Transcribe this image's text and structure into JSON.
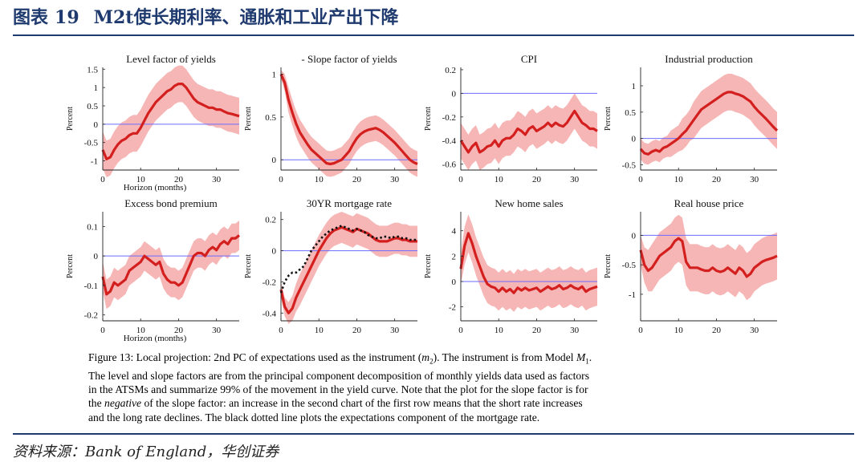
{
  "header": {
    "label": "图表",
    "number": "19",
    "title": "M2t使长期利率、通胀和工业产出下降"
  },
  "colors": {
    "header_blue": "#1f3a6e",
    "line_red": "#d41f1f",
    "band_pink": "#f6a9a9",
    "zero_blue": "#6b6bff"
  },
  "caption": {
    "line1_a": "Figure 13: Local projection: 2nd PC of expectations used as the instrument (",
    "line1_m": "m",
    "line1_sub": "2",
    "line1_b": "). The instrument is from Model ",
    "line1_M": "M",
    "line1_Msub": "1",
    "line1_c": ".",
    "line2": "The level and slope factors are from the principal component decomposition of monthly yields data used as factors",
    "line3": "in the ATSMs and summarize 99% of the movement in the yield curve. Note that the plot for the slope factor is for",
    "line4_a": "the ",
    "line4_em": "negative",
    "line4_b": " of the slope factor: an increase in the second chart of the first row means that the short rate increases",
    "line5": "and the long rate declines. The black dotted line plots the expectations component of the mortgage rate."
  },
  "source": "资料来源：Bank of England，华创证券",
  "chart_data": [
    {
      "type": "line",
      "title": "Level factor of yields",
      "ylabel": "Percent",
      "xlabel": "Horizon (months)",
      "xlim": [
        0,
        36
      ],
      "ylim": [
        -1.25,
        1.55
      ],
      "yticks": [
        -1,
        -0.5,
        0,
        0.5,
        1,
        1.5
      ],
      "ytick_labels": [
        "-1",
        "-0.5",
        "0",
        "0.5",
        "1",
        "1.5"
      ],
      "xticks": [
        0,
        10,
        20,
        30
      ],
      "x": [
        0,
        1,
        2,
        3,
        4,
        5,
        6,
        7,
        8,
        9,
        10,
        11,
        12,
        13,
        14,
        15,
        16,
        17,
        18,
        19,
        20,
        21,
        22,
        23,
        24,
        25,
        26,
        27,
        28,
        29,
        30,
        31,
        32,
        33,
        34,
        35,
        36
      ],
      "y": [
        -0.7,
        -0.95,
        -0.9,
        -0.7,
        -0.55,
        -0.45,
        -0.4,
        -0.3,
        -0.25,
        -0.25,
        -0.1,
        0.1,
        0.3,
        0.45,
        0.6,
        0.7,
        0.8,
        0.9,
        0.95,
        1.05,
        1.1,
        1.1,
        1.0,
        0.85,
        0.7,
        0.6,
        0.55,
        0.5,
        0.45,
        0.45,
        0.4,
        0.4,
        0.35,
        0.3,
        0.28,
        0.25,
        0.22
      ],
      "band": [
        0.5,
        0.5,
        0.5,
        0.5,
        0.5,
        0.5,
        0.5,
        0.5,
        0.5,
        0.5,
        0.5,
        0.5,
        0.5,
        0.5,
        0.5,
        0.5,
        0.5,
        0.5,
        0.5,
        0.5,
        0.5,
        0.5,
        0.5,
        0.5,
        0.5,
        0.5,
        0.5,
        0.5,
        0.5,
        0.5,
        0.5,
        0.5,
        0.5,
        0.5,
        0.5,
        0.5,
        0.5
      ]
    },
    {
      "type": "line",
      "title": "- Slope factor of yields",
      "ylabel": "Percent",
      "xlabel": "",
      "xlim": [
        0,
        36
      ],
      "ylim": [
        -0.12,
        1.08
      ],
      "yticks": [
        0,
        0.5,
        1
      ],
      "ytick_labels": [
        "0",
        "0.5",
        "1"
      ],
      "xticks": [
        0,
        10,
        20,
        30
      ],
      "x": [
        0,
        1,
        2,
        3,
        4,
        5,
        6,
        7,
        8,
        9,
        10,
        11,
        12,
        13,
        14,
        15,
        16,
        17,
        18,
        19,
        20,
        21,
        22,
        23,
        24,
        25,
        26,
        27,
        28,
        29,
        30,
        31,
        32,
        33,
        34,
        35,
        36
      ],
      "y": [
        1.0,
        0.9,
        0.7,
        0.55,
        0.42,
        0.32,
        0.25,
        0.18,
        0.12,
        0.08,
        0.04,
        0.0,
        -0.04,
        -0.05,
        -0.04,
        -0.02,
        0.0,
        0.05,
        0.1,
        0.18,
        0.25,
        0.3,
        0.33,
        0.35,
        0.36,
        0.37,
        0.35,
        0.32,
        0.28,
        0.24,
        0.2,
        0.15,
        0.1,
        0.05,
        0.0,
        -0.03,
        -0.05
      ],
      "band": [
        0.05,
        0.1,
        0.15,
        0.15,
        0.15,
        0.15,
        0.15,
        0.15,
        0.15,
        0.15,
        0.15,
        0.15,
        0.15,
        0.15,
        0.15,
        0.15,
        0.15,
        0.15,
        0.15,
        0.15,
        0.15,
        0.15,
        0.15,
        0.15,
        0.15,
        0.15,
        0.15,
        0.15,
        0.15,
        0.15,
        0.15,
        0.15,
        0.15,
        0.15,
        0.15,
        0.15,
        0.15
      ]
    },
    {
      "type": "line",
      "title": "CPI",
      "ylabel": "Percent",
      "xlabel": "",
      "xlim": [
        0,
        36
      ],
      "ylim": [
        -0.65,
        0.22
      ],
      "yticks": [
        -0.6,
        -0.4,
        -0.2,
        0,
        0.2
      ],
      "ytick_labels": [
        "-0.6",
        "-0.4",
        "-0.2",
        "0",
        "0.2"
      ],
      "xticks": [
        0,
        10,
        20,
        30
      ],
      "x": [
        0,
        1,
        2,
        3,
        4,
        5,
        6,
        7,
        8,
        9,
        10,
        11,
        12,
        13,
        14,
        15,
        16,
        17,
        18,
        19,
        20,
        21,
        22,
        23,
        24,
        25,
        26,
        27,
        28,
        29,
        30,
        31,
        32,
        33,
        34,
        35,
        36
      ],
      "y": [
        -0.4,
        -0.45,
        -0.5,
        -0.45,
        -0.42,
        -0.5,
        -0.48,
        -0.45,
        -0.44,
        -0.4,
        -0.45,
        -0.4,
        -0.38,
        -0.38,
        -0.35,
        -0.3,
        -0.32,
        -0.35,
        -0.3,
        -0.28,
        -0.32,
        -0.3,
        -0.28,
        -0.25,
        -0.28,
        -0.25,
        -0.27,
        -0.28,
        -0.25,
        -0.2,
        -0.15,
        -0.2,
        -0.25,
        -0.27,
        -0.3,
        -0.3,
        -0.32
      ],
      "band": [
        0.15,
        0.15,
        0.15,
        0.15,
        0.15,
        0.15,
        0.15,
        0.15,
        0.15,
        0.15,
        0.15,
        0.15,
        0.15,
        0.15,
        0.15,
        0.15,
        0.15,
        0.15,
        0.15,
        0.15,
        0.15,
        0.15,
        0.15,
        0.15,
        0.15,
        0.15,
        0.15,
        0.15,
        0.15,
        0.15,
        0.15,
        0.15,
        0.15,
        0.15,
        0.15,
        0.15,
        0.15
      ]
    },
    {
      "type": "line",
      "title": "Industrial production",
      "ylabel": "Percent",
      "xlabel": "",
      "xlim": [
        0,
        36
      ],
      "ylim": [
        -0.6,
        1.35
      ],
      "yticks": [
        -0.5,
        0,
        0.5,
        1
      ],
      "ytick_labels": [
        "-0.5",
        "0",
        "0.5",
        "1"
      ],
      "xticks": [
        0,
        10,
        20,
        30
      ],
      "x": [
        0,
        1,
        2,
        3,
        4,
        5,
        6,
        7,
        8,
        9,
        10,
        11,
        12,
        13,
        14,
        15,
        16,
        17,
        18,
        19,
        20,
        21,
        22,
        23,
        24,
        25,
        26,
        27,
        28,
        29,
        30,
        31,
        32,
        33,
        34,
        35,
        36
      ],
      "y": [
        -0.2,
        -0.28,
        -0.3,
        -0.25,
        -0.22,
        -0.25,
        -0.18,
        -0.15,
        -0.1,
        -0.05,
        0.0,
        0.08,
        0.15,
        0.25,
        0.35,
        0.45,
        0.55,
        0.6,
        0.65,
        0.7,
        0.75,
        0.8,
        0.85,
        0.88,
        0.88,
        0.85,
        0.83,
        0.8,
        0.75,
        0.7,
        0.6,
        0.52,
        0.45,
        0.38,
        0.3,
        0.22,
        0.15
      ],
      "band": [
        0.2,
        0.2,
        0.2,
        0.2,
        0.2,
        0.2,
        0.2,
        0.2,
        0.25,
        0.25,
        0.25,
        0.3,
        0.3,
        0.3,
        0.35,
        0.35,
        0.35,
        0.35,
        0.35,
        0.35,
        0.35,
        0.35,
        0.35,
        0.35,
        0.35,
        0.35,
        0.35,
        0.35,
        0.35,
        0.35,
        0.35,
        0.35,
        0.35,
        0.35,
        0.35,
        0.35,
        0.35
      ]
    },
    {
      "type": "line",
      "title": "Excess bond premium",
      "ylabel": "Percent",
      "xlabel": "Horizon (months)",
      "xlim": [
        0,
        36
      ],
      "ylim": [
        -0.22,
        0.15
      ],
      "yticks": [
        -0.2,
        -0.1,
        0,
        0.1
      ],
      "ytick_labels": [
        "-0.2",
        "-0.1",
        "0",
        "0.1"
      ],
      "xticks": [
        0,
        10,
        20,
        30
      ],
      "x": [
        0,
        1,
        2,
        3,
        4,
        5,
        6,
        7,
        8,
        9,
        10,
        11,
        12,
        13,
        14,
        15,
        16,
        17,
        18,
        19,
        20,
        21,
        22,
        23,
        24,
        25,
        26,
        27,
        28,
        29,
        30,
        31,
        32,
        33,
        34,
        35,
        36
      ],
      "y": [
        -0.07,
        -0.13,
        -0.12,
        -0.09,
        -0.1,
        -0.09,
        -0.08,
        -0.05,
        -0.04,
        -0.03,
        -0.02,
        0.0,
        -0.01,
        -0.02,
        -0.03,
        -0.02,
        -0.06,
        -0.08,
        -0.09,
        -0.09,
        -0.1,
        -0.09,
        -0.06,
        -0.03,
        0.0,
        0.01,
        0.01,
        0.0,
        0.02,
        0.03,
        0.02,
        0.04,
        0.05,
        0.04,
        0.06,
        0.06,
        0.07
      ],
      "band": [
        0.05,
        0.05,
        0.05,
        0.05,
        0.05,
        0.05,
        0.05,
        0.05,
        0.05,
        0.05,
        0.05,
        0.05,
        0.05,
        0.05,
        0.05,
        0.05,
        0.05,
        0.05,
        0.05,
        0.05,
        0.05,
        0.05,
        0.05,
        0.05,
        0.05,
        0.05,
        0.05,
        0.05,
        0.05,
        0.05,
        0.05,
        0.05,
        0.05,
        0.05,
        0.05,
        0.05,
        0.05
      ]
    },
    {
      "type": "line",
      "title": "30YR mortgage rate",
      "ylabel": "Percent",
      "xlabel": "",
      "xlim": [
        0,
        36
      ],
      "ylim": [
        -0.45,
        0.25
      ],
      "yticks": [
        -0.4,
        -0.2,
        0,
        0.2
      ],
      "ytick_labels": [
        "-0.4",
        "-0.2",
        "0",
        "0.2"
      ],
      "xticks": [
        0,
        10,
        20,
        30
      ],
      "x": [
        0,
        1,
        2,
        3,
        4,
        5,
        6,
        7,
        8,
        9,
        10,
        11,
        12,
        13,
        14,
        15,
        16,
        17,
        18,
        19,
        20,
        21,
        22,
        23,
        24,
        25,
        26,
        27,
        28,
        29,
        30,
        31,
        32,
        33,
        34,
        35,
        36
      ],
      "y": [
        -0.25,
        -0.36,
        -0.4,
        -0.37,
        -0.3,
        -0.25,
        -0.2,
        -0.15,
        -0.1,
        -0.05,
        0.0,
        0.04,
        0.08,
        0.11,
        0.13,
        0.14,
        0.15,
        0.14,
        0.13,
        0.12,
        0.14,
        0.13,
        0.12,
        0.11,
        0.09,
        0.07,
        0.06,
        0.06,
        0.06,
        0.07,
        0.08,
        0.08,
        0.07,
        0.07,
        0.06,
        0.06,
        0.06
      ],
      "band": [
        0.05,
        0.06,
        0.07,
        0.08,
        0.09,
        0.1,
        0.1,
        0.1,
        0.1,
        0.1,
        0.1,
        0.1,
        0.1,
        0.1,
        0.1,
        0.1,
        0.1,
        0.1,
        0.1,
        0.1,
        0.1,
        0.1,
        0.1,
        0.1,
        0.1,
        0.1,
        0.1,
        0.1,
        0.1,
        0.1,
        0.1,
        0.1,
        0.1,
        0.1,
        0.1,
        0.1,
        0.1
      ],
      "dotted": [
        -0.27,
        -0.2,
        -0.16,
        -0.14,
        -0.14,
        -0.12,
        -0.1,
        -0.05,
        0.0,
        0.03,
        0.06,
        0.09,
        0.11,
        0.13,
        0.14,
        0.15,
        0.16,
        0.15,
        0.14,
        0.13,
        0.14,
        0.13,
        0.12,
        0.1,
        0.09,
        0.08,
        0.08,
        0.09,
        0.09,
        0.08,
        0.09,
        0.09,
        0.08,
        0.08,
        0.07,
        0.07,
        0.07
      ]
    },
    {
      "type": "line",
      "title": "New home sales",
      "ylabel": "Percent",
      "xlabel": "",
      "xlim": [
        0,
        36
      ],
      "ylim": [
        -3.1,
        5.5
      ],
      "yticks": [
        -2,
        0,
        2,
        4
      ],
      "ytick_labels": [
        "-2",
        "0",
        "2",
        "4"
      ],
      "xticks": [
        0,
        10,
        20,
        30
      ],
      "x": [
        0,
        1,
        2,
        3,
        4,
        5,
        6,
        7,
        8,
        9,
        10,
        11,
        12,
        13,
        14,
        15,
        16,
        17,
        18,
        19,
        20,
        21,
        22,
        23,
        24,
        25,
        26,
        27,
        28,
        29,
        30,
        31,
        32,
        33,
        34,
        35,
        36
      ],
      "y": [
        1.0,
        2.8,
        3.8,
        3.0,
        2.0,
        1.2,
        0.4,
        -0.2,
        -0.4,
        -0.5,
        -0.8,
        -0.5,
        -0.8,
        -0.6,
        -0.9,
        -0.5,
        -0.7,
        -0.5,
        -0.7,
        -0.6,
        -0.5,
        -0.8,
        -0.6,
        -0.4,
        -0.6,
        -0.5,
        -0.3,
        -0.6,
        -0.5,
        -0.3,
        -0.5,
        -0.6,
        -0.4,
        -0.8,
        -0.6,
        -0.5,
        -0.4
      ],
      "band": [
        1.2,
        1.5,
        1.5,
        1.5,
        1.5,
        1.5,
        1.5,
        1.5,
        1.5,
        1.5,
        1.5,
        1.5,
        1.5,
        1.5,
        1.5,
        1.5,
        1.5,
        1.5,
        1.5,
        1.5,
        1.5,
        1.5,
        1.5,
        1.5,
        1.5,
        1.5,
        1.5,
        1.5,
        1.5,
        1.5,
        1.5,
        1.5,
        1.5,
        1.5,
        1.5,
        1.5,
        1.5
      ]
    },
    {
      "type": "line",
      "title": "Real house price",
      "ylabel": "Percent",
      "xlabel": "",
      "xlim": [
        0,
        36
      ],
      "ylim": [
        -1.45,
        0.4
      ],
      "yticks": [
        -1,
        -0.5,
        0
      ],
      "ytick_labels": [
        "-1",
        "-0.5",
        "0"
      ],
      "xticks": [
        0,
        10,
        20,
        30
      ],
      "x": [
        0,
        1,
        2,
        3,
        4,
        5,
        6,
        7,
        8,
        9,
        10,
        11,
        12,
        13,
        14,
        15,
        16,
        17,
        18,
        19,
        20,
        21,
        22,
        23,
        24,
        25,
        26,
        27,
        28,
        29,
        30,
        31,
        32,
        33,
        34,
        35,
        36
      ],
      "y": [
        -0.25,
        -0.5,
        -0.6,
        -0.55,
        -0.45,
        -0.35,
        -0.3,
        -0.25,
        -0.2,
        -0.1,
        -0.05,
        -0.1,
        -0.45,
        -0.55,
        -0.55,
        -0.55,
        -0.58,
        -0.6,
        -0.6,
        -0.55,
        -0.6,
        -0.62,
        -0.6,
        -0.55,
        -0.6,
        -0.65,
        -0.55,
        -0.6,
        -0.7,
        -0.65,
        -0.55,
        -0.5,
        -0.45,
        -0.42,
        -0.4,
        -0.38,
        -0.35
      ],
      "band": [
        0.25,
        0.3,
        0.35,
        0.4,
        0.4,
        0.4,
        0.4,
        0.4,
        0.4,
        0.4,
        0.4,
        0.4,
        0.4,
        0.4,
        0.4,
        0.4,
        0.4,
        0.4,
        0.4,
        0.4,
        0.4,
        0.4,
        0.4,
        0.4,
        0.4,
        0.4,
        0.4,
        0.4,
        0.4,
        0.4,
        0.4,
        0.4,
        0.4,
        0.4,
        0.4,
        0.4,
        0.4
      ]
    }
  ]
}
